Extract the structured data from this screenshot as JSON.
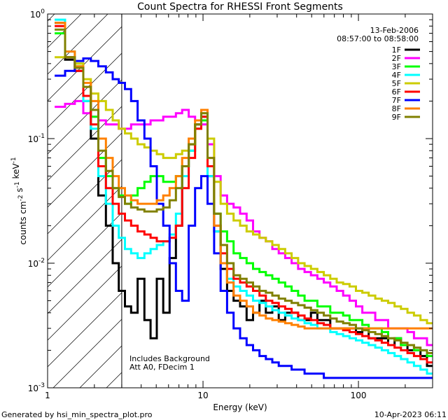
{
  "chart_data": {
    "type": "line",
    "title": "Count Spectra for RHESSI Front Segments",
    "xlabel": "Energy (keV)",
    "ylabel": "counts cm-2 s-1 keV-1",
    "x_scale": "log",
    "y_scale": "log",
    "xlim": [
      1,
      300
    ],
    "ylim": [
      0.001,
      1
    ],
    "x_tick_labels": [
      "1",
      "10",
      "100"
    ],
    "y_tick_labels": [
      "10-3",
      "10-2",
      "10-1",
      "100"
    ],
    "date": "13-Feb-2006",
    "time_range": "08:57:00 to 08:58:00",
    "annotations": [
      "Includes Background",
      "Att A0, FDecim 1"
    ],
    "footer_left": "Generated by hsi_min_spectra_plot.pro",
    "footer_right": "10-Apr-2023 06:11",
    "hatch_region_max_kev": 3,
    "energy_kev": [
      1.2,
      1.4,
      1.6,
      1.8,
      2,
      2.25,
      2.5,
      2.75,
      3,
      3.3,
      3.6,
      4,
      4.4,
      4.8,
      5.3,
      5.8,
      6.4,
      7,
      7.7,
      8.5,
      9.3,
      10.2,
      11.2,
      12.4,
      13.6,
      15,
      16.5,
      18.2,
      20,
      22,
      24.2,
      26.6,
      29.3,
      32.2,
      35.4,
      39,
      42.9,
      47.2,
      51.9,
      57.1,
      62.8,
      69.1,
      76,
      83.6,
      92,
      101,
      111,
      122,
      135,
      148,
      163,
      179,
      197,
      217,
      239,
      263,
      290
    ],
    "series": [
      {
        "name": "1F",
        "color": "#000000",
        "values": [
          0.85,
          0.43,
          0.35,
          0.2,
          0.1,
          0.035,
          0.02,
          0.01,
          0.006,
          0.0045,
          0.004,
          0.0075,
          0.0035,
          0.0025,
          0.0075,
          0.004,
          0.011,
          0.02,
          0.06,
          0.09,
          0.13,
          0.15,
          0.05,
          0.018,
          0.009,
          0.006,
          0.005,
          0.0045,
          0.0035,
          0.004,
          0.005,
          0.004,
          0.0045,
          0.0035,
          0.004,
          0.004,
          0.0035,
          0.0035,
          0.004,
          0.0035,
          0.0035,
          0.003,
          0.003,
          0.003,
          0.003,
          0.0028,
          0.003,
          0.0025,
          0.0025,
          0.0025,
          0.0022,
          0.0025,
          0.0022,
          0.002,
          0.002,
          0.0018,
          0.0015
        ]
      },
      {
        "name": "2F",
        "color": "#ff00ff",
        "values": [
          0.18,
          0.19,
          0.2,
          0.16,
          0.15,
          0.14,
          0.13,
          0.13,
          0.12,
          0.12,
          0.13,
          0.13,
          0.13,
          0.14,
          0.14,
          0.15,
          0.15,
          0.16,
          0.17,
          0.15,
          0.14,
          0.13,
          0.09,
          0.05,
          0.035,
          0.03,
          0.028,
          0.025,
          0.022,
          0.018,
          0.016,
          0.015,
          0.013,
          0.012,
          0.011,
          0.01,
          0.009,
          0.0085,
          0.008,
          0.0075,
          0.007,
          0.0065,
          0.006,
          0.0055,
          0.005,
          0.0045,
          0.004,
          0.004,
          0.0035,
          0.0035,
          0.003,
          0.003,
          0.003,
          0.0028,
          0.0025,
          0.0025,
          0.0022
        ]
      },
      {
        "name": "3F",
        "color": "#00ff00",
        "values": [
          0.7,
          0.45,
          0.4,
          0.22,
          0.15,
          0.07,
          0.05,
          0.04,
          0.035,
          0.03,
          0.035,
          0.04,
          0.045,
          0.05,
          0.05,
          0.045,
          0.045,
          0.05,
          0.06,
          0.08,
          0.12,
          0.14,
          0.06,
          0.025,
          0.018,
          0.015,
          0.012,
          0.011,
          0.01,
          0.009,
          0.0085,
          0.008,
          0.0075,
          0.007,
          0.0065,
          0.006,
          0.0055,
          0.005,
          0.005,
          0.0045,
          0.0045,
          0.004,
          0.004,
          0.0038,
          0.0035,
          0.0035,
          0.0032,
          0.003,
          0.003,
          0.0028,
          0.0025,
          0.0025,
          0.0022,
          0.0022,
          0.002,
          0.002,
          0.0018
        ]
      },
      {
        "name": "4F",
        "color": "#00ffff",
        "values": [
          0.9,
          0.5,
          0.38,
          0.2,
          0.12,
          0.05,
          0.03,
          0.02,
          0.016,
          0.013,
          0.012,
          0.011,
          0.012,
          0.013,
          0.014,
          0.015,
          0.017,
          0.025,
          0.05,
          0.08,
          0.12,
          0.15,
          0.05,
          0.018,
          0.01,
          0.0075,
          0.0065,
          0.006,
          0.0055,
          0.005,
          0.0048,
          0.0045,
          0.0042,
          0.004,
          0.0038,
          0.0036,
          0.0035,
          0.0033,
          0.0032,
          0.003,
          0.003,
          0.0028,
          0.0027,
          0.0026,
          0.0025,
          0.0024,
          0.0023,
          0.0022,
          0.0021,
          0.002,
          0.0019,
          0.0018,
          0.0017,
          0.0016,
          0.0015,
          0.0014,
          0.0013
        ]
      },
      {
        "name": "5F",
        "color": "#cccc00",
        "values": [
          0.45,
          0.45,
          0.4,
          0.3,
          0.23,
          0.2,
          0.17,
          0.14,
          0.12,
          0.11,
          0.1,
          0.09,
          0.085,
          0.08,
          0.075,
          0.07,
          0.07,
          0.075,
          0.08,
          0.09,
          0.12,
          0.16,
          0.1,
          0.045,
          0.03,
          0.025,
          0.022,
          0.02,
          0.018,
          0.017,
          0.016,
          0.015,
          0.014,
          0.013,
          0.012,
          0.011,
          0.01,
          0.0095,
          0.009,
          0.0085,
          0.008,
          0.0075,
          0.007,
          0.0068,
          0.0065,
          0.006,
          0.0058,
          0.0055,
          0.0052,
          0.005,
          0.0048,
          0.0045,
          0.0043,
          0.004,
          0.0038,
          0.0035,
          0.0033
        ]
      },
      {
        "name": "6F",
        "color": "#ff0000",
        "values": [
          0.8,
          0.45,
          0.35,
          0.22,
          0.13,
          0.06,
          0.04,
          0.03,
          0.025,
          0.022,
          0.02,
          0.018,
          0.017,
          0.016,
          0.015,
          0.015,
          0.016,
          0.02,
          0.04,
          0.07,
          0.12,
          0.15,
          0.06,
          0.02,
          0.012,
          0.009,
          0.0075,
          0.007,
          0.0065,
          0.006,
          0.0055,
          0.005,
          0.0048,
          0.0045,
          0.0043,
          0.004,
          0.0038,
          0.0036,
          0.0035,
          0.0033,
          0.0032,
          0.003,
          0.003,
          0.0029,
          0.0028,
          0.0027,
          0.0026,
          0.0025,
          0.0024,
          0.0023,
          0.0022,
          0.0021,
          0.002,
          0.0019,
          0.0018,
          0.0017,
          0.0016
        ]
      },
      {
        "name": "7F",
        "color": "#0000ff",
        "values": [
          0.32,
          0.35,
          0.42,
          0.44,
          0.42,
          0.38,
          0.34,
          0.3,
          0.28,
          0.25,
          0.2,
          0.14,
          0.1,
          0.06,
          0.03,
          0.02,
          0.01,
          0.006,
          0.005,
          0.02,
          0.04,
          0.05,
          0.03,
          0.012,
          0.006,
          0.004,
          0.003,
          0.0025,
          0.0022,
          0.002,
          0.0018,
          0.0017,
          0.0016,
          0.0015,
          0.0015,
          0.0014,
          0.0014,
          0.0013,
          0.0013,
          0.0013,
          0.0012,
          0.0012,
          0.0012,
          0.0012,
          0.0012,
          0.0012,
          0.0012,
          0.0012,
          0.0012,
          0.0012,
          0.0012,
          0.0012,
          0.0012,
          0.0012,
          0.0012,
          0.0012,
          0.0012
        ]
      },
      {
        "name": "8F",
        "color": "#ff8000",
        "values": [
          0.85,
          0.5,
          0.38,
          0.28,
          0.2,
          0.1,
          0.07,
          0.05,
          0.04,
          0.035,
          0.032,
          0.03,
          0.03,
          0.03,
          0.032,
          0.035,
          0.04,
          0.05,
          0.07,
          0.1,
          0.14,
          0.17,
          0.07,
          0.02,
          0.01,
          0.007,
          0.0055,
          0.005,
          0.0045,
          0.004,
          0.0038,
          0.0036,
          0.0035,
          0.0034,
          0.0033,
          0.0032,
          0.0031,
          0.003,
          0.003,
          0.003,
          0.003,
          0.003,
          0.003,
          0.003,
          0.003,
          0.003,
          0.003,
          0.003,
          0.003,
          0.003,
          0.003,
          0.003,
          0.003,
          0.003,
          0.003,
          0.003,
          0.003
        ]
      },
      {
        "name": "9F",
        "color": "#808000",
        "values": [
          0.75,
          0.45,
          0.37,
          0.26,
          0.17,
          0.08,
          0.055,
          0.04,
          0.034,
          0.03,
          0.028,
          0.027,
          0.026,
          0.026,
          0.027,
          0.028,
          0.032,
          0.04,
          0.06,
          0.09,
          0.13,
          0.16,
          0.07,
          0.025,
          0.014,
          0.01,
          0.008,
          0.0075,
          0.007,
          0.0065,
          0.006,
          0.0058,
          0.0055,
          0.0052,
          0.005,
          0.0048,
          0.0046,
          0.0044,
          0.0042,
          0.004,
          0.0038,
          0.0036,
          0.0034,
          0.0033,
          0.0032,
          0.003,
          0.0029,
          0.0028,
          0.0027,
          0.0026,
          0.0025,
          0.0024,
          0.0023,
          0.0022,
          0.0021,
          0.002,
          0.0019
        ]
      }
    ]
  }
}
